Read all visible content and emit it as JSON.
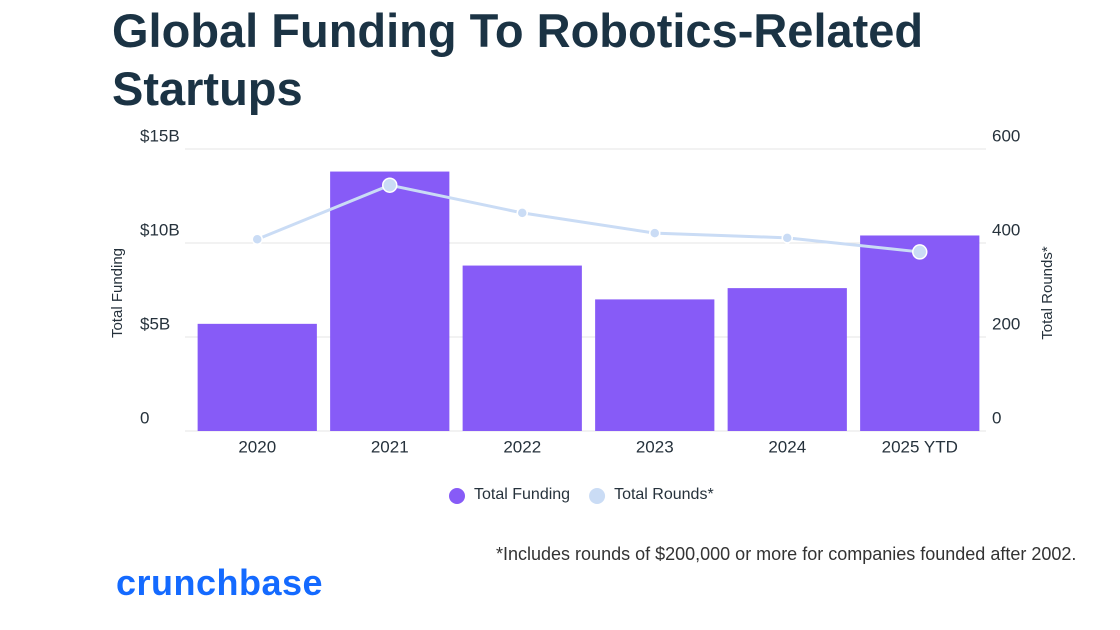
{
  "chart_data": {
    "type": "bar_line",
    "title": "Global Funding To Robotics-Related Startups",
    "y_label": "Total Funding",
    "y2_label": "Total Rounds*",
    "categories": [
      "2020",
      "2021",
      "2022",
      "2023",
      "2024",
      "2025 YTD"
    ],
    "series": [
      {
        "name": "Total Funding",
        "color": "#875bf7",
        "type": "bar",
        "values": [
          5.7,
          13.8,
          8.8,
          7.0,
          7.6,
          10.4
        ]
      },
      {
        "name": "Total Rounds*",
        "color": "#cadcf5",
        "type": "line",
        "axis": "y2",
        "values": [
          408,
          523,
          464,
          421,
          411,
          381
        ]
      }
    ],
    "ylim": [
      0,
      15
    ],
    "yticks": [
      0,
      {
        "value": 5,
        "label": "$5B"
      },
      {
        "value": 10,
        "label": "$10B"
      },
      {
        "value": 15,
        "label": "$15B"
      }
    ],
    "y2lim": [
      0,
      600
    ],
    "y2ticks": [
      0,
      200,
      400,
      600
    ],
    "grid": true,
    "legend": "bottom",
    "footnote": "*Includes rounds of $200,000 or more for companies founded after 2002.",
    "brand": "crunchbase"
  }
}
